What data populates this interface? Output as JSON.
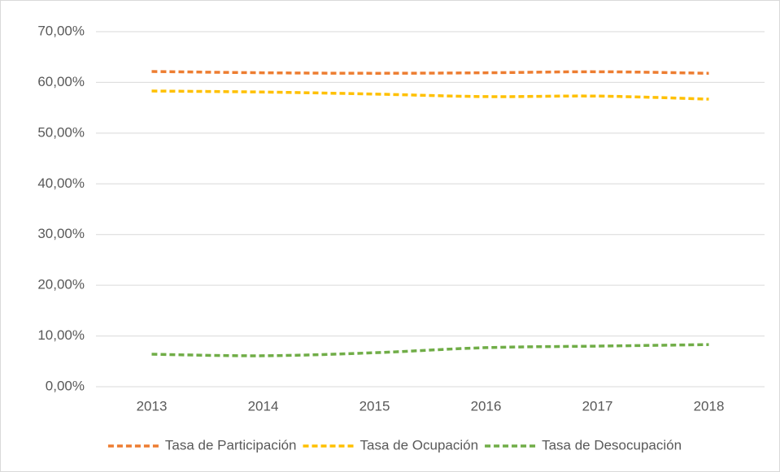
{
  "chart_data": {
    "type": "line",
    "categories": [
      "2013",
      "2014",
      "2015",
      "2016",
      "2017",
      "2018"
    ],
    "series": [
      {
        "name": "Tasa de Participación",
        "color": "#ED7D31",
        "values": [
          62.15,
          61.9,
          61.8,
          61.9,
          62.1,
          61.8
        ]
      },
      {
        "name": "Tasa de Ocupación",
        "color": "#FFC000",
        "values": [
          58.3,
          58.1,
          57.7,
          57.2,
          57.3,
          56.7
        ]
      },
      {
        "name": "Tasa de Desocupación",
        "color": "#70AD47",
        "values": [
          6.4,
          6.1,
          6.7,
          7.7,
          8.0,
          8.3
        ]
      }
    ],
    "ylim": [
      0,
      70
    ],
    "yticks": [
      {
        "value": 0,
        "label": "0,00%"
      },
      {
        "value": 10,
        "label": "10,00%"
      },
      {
        "value": 20,
        "label": "20,00%"
      },
      {
        "value": 30,
        "label": "30,00%"
      },
      {
        "value": 40,
        "label": "40,00%"
      },
      {
        "value": 50,
        "label": "50,00%"
      },
      {
        "value": 60,
        "label": "60,00%"
      },
      {
        "value": 70,
        "label": "70,00%"
      }
    ],
    "grid": true,
    "legend": "bottom"
  }
}
